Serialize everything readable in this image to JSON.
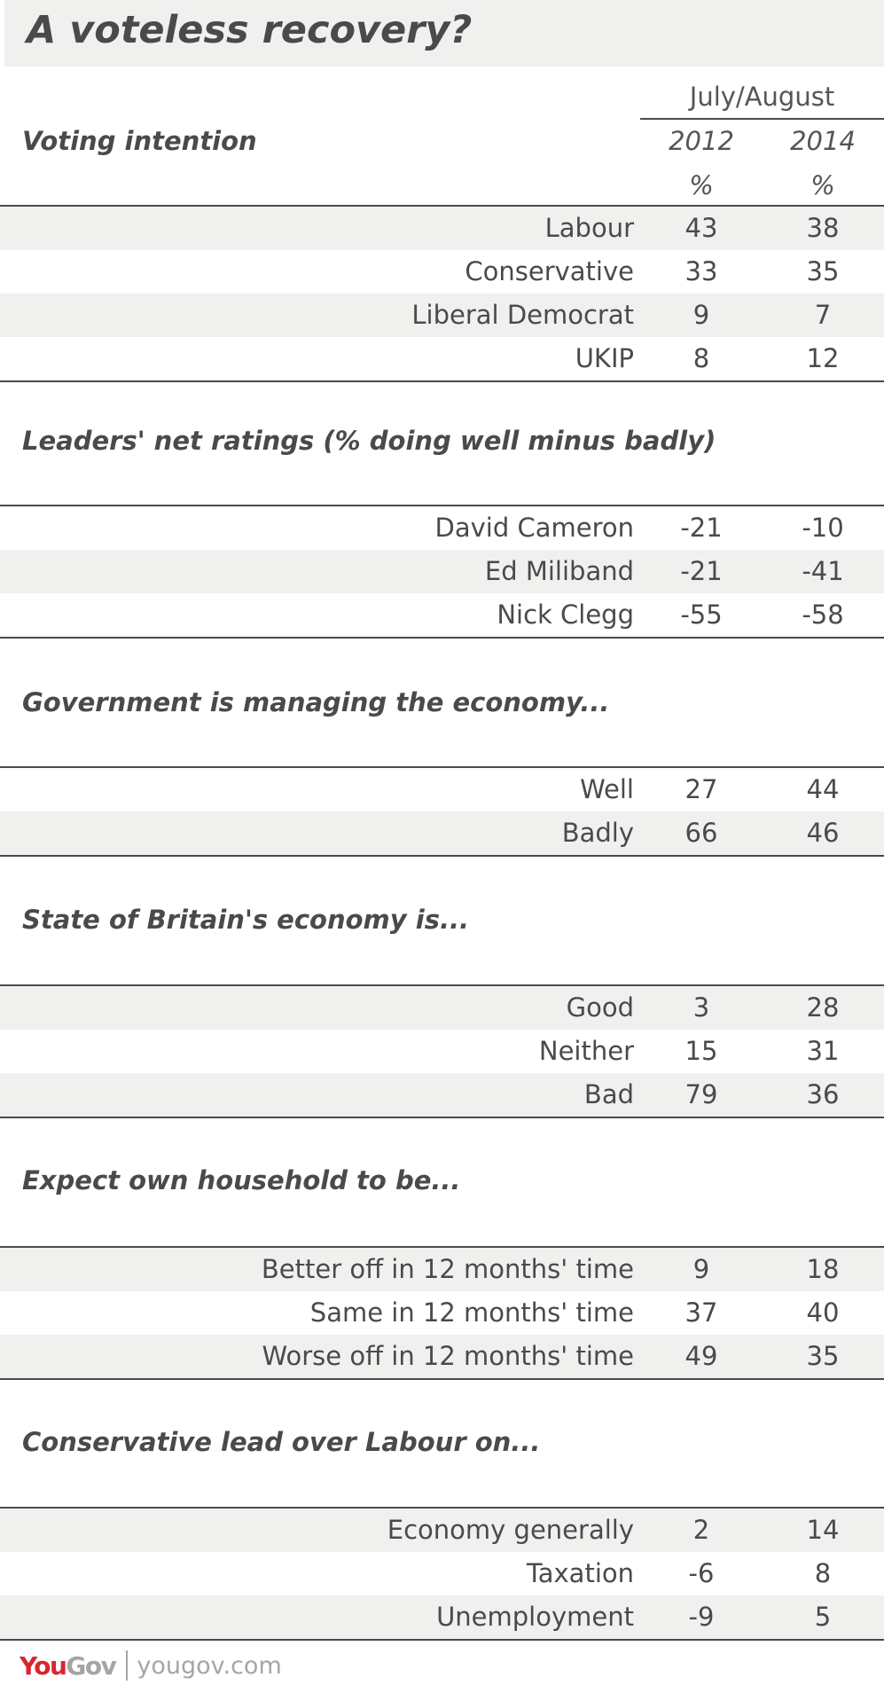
{
  "title": "A voteless recovery?",
  "period_label": "July/August",
  "years": [
    "2012",
    "2014"
  ],
  "unit": "%",
  "sections": [
    {
      "heading": "Voting intention",
      "rows": [
        {
          "label": "Labour",
          "v2012": "43",
          "v2014": "38"
        },
        {
          "label": "Conservative",
          "v2012": "33",
          "v2014": "35"
        },
        {
          "label": "Liberal Democrat",
          "v2012": "9",
          "v2014": "7"
        },
        {
          "label": "UKIP",
          "v2012": "8",
          "v2014": "12"
        }
      ]
    },
    {
      "heading": "Leaders' net ratings (% doing well minus badly)",
      "rows": [
        {
          "label": "David Cameron",
          "v2012": "-21",
          "v2014": "-10"
        },
        {
          "label": "Ed Miliband",
          "v2012": "-21",
          "v2014": "-41"
        },
        {
          "label": "Nick Clegg",
          "v2012": "-55",
          "v2014": "-58"
        }
      ]
    },
    {
      "heading": "Government is managing the economy...",
      "rows": [
        {
          "label": "Well",
          "v2012": "27",
          "v2014": "44"
        },
        {
          "label": "Badly",
          "v2012": "66",
          "v2014": "46"
        }
      ]
    },
    {
      "heading": "State of Britain's economy is...",
      "rows": [
        {
          "label": "Good",
          "v2012": "3",
          "v2014": "28"
        },
        {
          "label": "Neither",
          "v2012": "15",
          "v2014": "31"
        },
        {
          "label": "Bad",
          "v2012": "79",
          "v2014": "36"
        }
      ]
    },
    {
      "heading": "Expect own household to be...",
      "rows": [
        {
          "label": "Better off in 12 months' time",
          "v2012": "9",
          "v2014": "18"
        },
        {
          "label": "Same in 12 months' time",
          "v2012": "37",
          "v2014": "40"
        },
        {
          "label": "Worse off in 12 months' time",
          "v2012": "49",
          "v2014": "35"
        }
      ]
    },
    {
      "heading": "Conservative lead over Labour on...",
      "rows": [
        {
          "label": "Economy generally",
          "v2012": "2",
          "v2014": "14"
        },
        {
          "label": "Taxation",
          "v2012": "-6",
          "v2014": "8"
        },
        {
          "label": "Unemployment",
          "v2012": "-9",
          "v2014": "5"
        }
      ]
    }
  ],
  "footer": {
    "logo_you": "You",
    "logo_gov": "Gov",
    "url": "yougov.com"
  },
  "colors": {
    "text": "#4a4a4a",
    "shade": "#f0f0ee",
    "brand_red": "#d9262e",
    "brand_grey": "#a5a5a5"
  }
}
